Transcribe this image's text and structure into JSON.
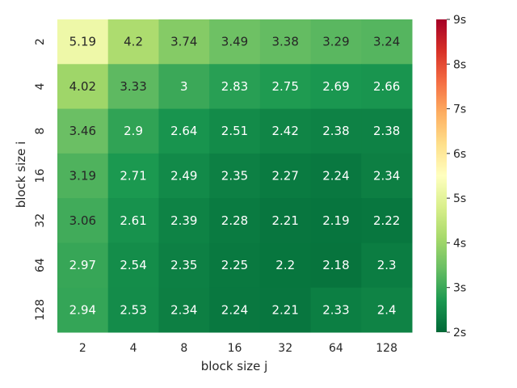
{
  "chart_data": {
    "type": "heatmap",
    "title": "",
    "xlabel": "block size j",
    "ylabel": "block size i",
    "x_categories": [
      "2",
      "4",
      "8",
      "16",
      "32",
      "64",
      "128"
    ],
    "y_categories": [
      "2",
      "4",
      "8",
      "16",
      "32",
      "64",
      "128"
    ],
    "values": [
      [
        5.19,
        4.2,
        3.74,
        3.49,
        3.38,
        3.29,
        3.24
      ],
      [
        4.02,
        3.33,
        3,
        2.83,
        2.75,
        2.69,
        2.66
      ],
      [
        3.46,
        2.9,
        2.64,
        2.51,
        2.42,
        2.38,
        2.38
      ],
      [
        3.19,
        2.71,
        2.49,
        2.35,
        2.27,
        2.24,
        2.34
      ],
      [
        3.06,
        2.61,
        2.39,
        2.28,
        2.21,
        2.19,
        2.22
      ],
      [
        2.97,
        2.54,
        2.35,
        2.25,
        2.2,
        2.18,
        2.3
      ],
      [
        2.94,
        2.53,
        2.34,
        2.24,
        2.21,
        2.33,
        2.4
      ]
    ],
    "colorbar": {
      "vmin": 2,
      "vmax": 9,
      "ticks": [
        2,
        3,
        4,
        5,
        6,
        7,
        8,
        9
      ],
      "tick_labels": [
        "2s",
        "3s",
        "4s",
        "5s",
        "6s",
        "7s",
        "8s",
        "9s"
      ],
      "colormap": "RdYlGn_r"
    },
    "grid": false,
    "legend": "colorbar-right"
  }
}
